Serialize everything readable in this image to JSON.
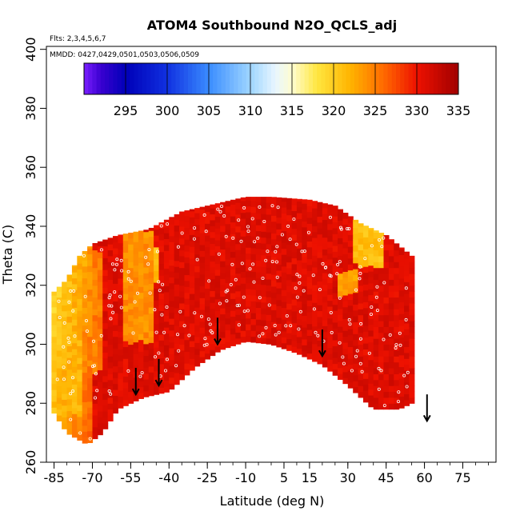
{
  "chart_data": {
    "type": "heatmap",
    "title": "ATOM4 Southbound N2O_QCLS_adj",
    "annotations": {
      "flights": "Flts: 2,3,4,5,6,7",
      "dates": "MMDD: 0427,0429,0501,0503,0506,0509"
    },
    "xlabel": "Latitude (deg N)",
    "ylabel": "Theta (C)",
    "xlim": [
      -88,
      88
    ],
    "ylim": [
      260,
      401
    ],
    "xticks": [
      -85,
      -70,
      -55,
      -40,
      -25,
      -10,
      5,
      15,
      30,
      45,
      60,
      75
    ],
    "xtick_labels": [
      "-85",
      "-70",
      "-55",
      "-40",
      "-25",
      "-10",
      "5",
      "15",
      "30",
      "45",
      "60",
      "75"
    ],
    "yticks": [
      260,
      280,
      300,
      320,
      340,
      360,
      380,
      400
    ],
    "ytick_labels": [
      "260",
      "280",
      "300",
      "320",
      "340",
      "360",
      "380",
      "400"
    ],
    "colorbar": {
      "range": [
        290,
        335
      ],
      "ticks": [
        295,
        300,
        305,
        310,
        315,
        320,
        325,
        330,
        335
      ],
      "tick_labels": [
        "295",
        "300",
        "305",
        "310",
        "315",
        "320",
        "325",
        "330",
        "335"
      ],
      "stops": [
        {
          "value": 290,
          "color": "#7a1fff"
        },
        {
          "value": 292,
          "color": "#3a00d0"
        },
        {
          "value": 295,
          "color": "#0000b8"
        },
        {
          "value": 300,
          "color": "#1030e0"
        },
        {
          "value": 305,
          "color": "#3a8cff"
        },
        {
          "value": 310,
          "color": "#9fd6ff"
        },
        {
          "value": 313,
          "color": "#e8f6ff"
        },
        {
          "value": 315,
          "color": "#fffdd0"
        },
        {
          "value": 318,
          "color": "#ffe640"
        },
        {
          "value": 322,
          "color": "#ffb400"
        },
        {
          "value": 326,
          "color": "#ff6a00"
        },
        {
          "value": 330,
          "color": "#ee1100"
        },
        {
          "value": 335,
          "color": "#a00000"
        }
      ]
    },
    "field": {
      "description": "N2O concentration field binned by latitude and theta",
      "boundary_top": [
        [
          -86,
          317
        ],
        [
          -80,
          322
        ],
        [
          -75,
          330
        ],
        [
          -70,
          334
        ],
        [
          -60,
          337
        ],
        [
          -48,
          339
        ],
        [
          -35,
          345
        ],
        [
          -20,
          348
        ],
        [
          -10,
          350
        ],
        [
          0,
          350
        ],
        [
          15,
          349
        ],
        [
          25,
          347
        ],
        [
          35,
          341
        ],
        [
          45,
          337
        ],
        [
          55,
          330
        ]
      ],
      "boundary_bottom": [
        [
          -86,
          278
        ],
        [
          -80,
          270
        ],
        [
          -72,
          266
        ],
        [
          -66,
          270
        ],
        [
          -60,
          278
        ],
        [
          -50,
          282
        ],
        [
          -40,
          284
        ],
        [
          -30,
          292
        ],
        [
          -20,
          298
        ],
        [
          -10,
          301
        ],
        [
          0,
          300
        ],
        [
          10,
          297
        ],
        [
          20,
          293
        ],
        [
          30,
          286
        ],
        [
          40,
          278
        ],
        [
          50,
          278
        ],
        [
          55,
          280
        ]
      ],
      "regions": [
        {
          "lat": [
            -86,
            -75
          ],
          "theta": [
            275,
            318
          ],
          "value": 322
        },
        {
          "lat": [
            -80,
            -68
          ],
          "theta": [
            290,
            330
          ],
          "value": 325
        },
        {
          "lat": [
            -58,
            -48
          ],
          "theta": [
            300,
            338
          ],
          "value": 324
        },
        {
          "lat": [
            -55,
            -45
          ],
          "theta": [
            320,
            332
          ],
          "value": 321
        },
        {
          "lat": [
            32,
            42
          ],
          "theta": [
            326,
            342
          ],
          "value": 321
        },
        {
          "lat": [
            36,
            42
          ],
          "theta": [
            328,
            334
          ],
          "value": 316
        },
        {
          "lat": [
            26,
            32
          ],
          "theta": [
            316,
            324
          ],
          "value": 323
        },
        {
          "lat": [
            -40,
            55
          ],
          "theta": [
            285,
            345
          ],
          "value": 331
        }
      ]
    },
    "arrows": [
      {
        "lat": -53,
        "theta": 287
      },
      {
        "lat": -44,
        "theta": 290
      },
      {
        "lat": -21,
        "theta": 304
      },
      {
        "lat": 20,
        "theta": 300
      },
      {
        "lat": 61,
        "theta": 278
      }
    ],
    "samples": {
      "count": 240,
      "description": "white circle markers along flight track sample points"
    }
  }
}
